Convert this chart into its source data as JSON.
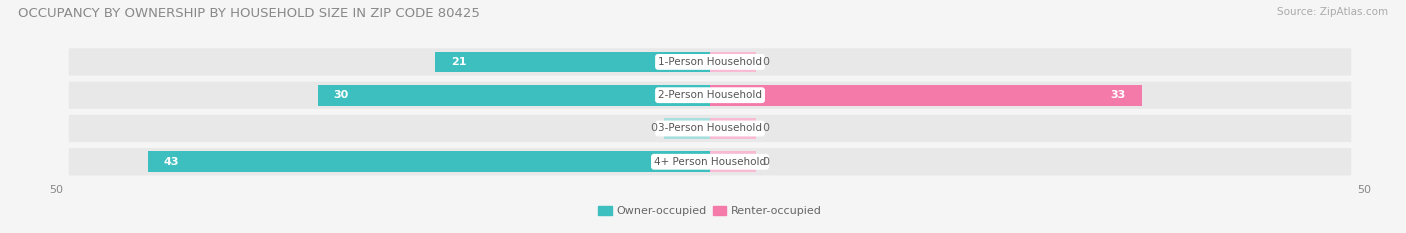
{
  "title": "OCCUPANCY BY OWNERSHIP BY HOUSEHOLD SIZE IN ZIP CODE 80425",
  "source": "Source: ZipAtlas.com",
  "categories": [
    "1-Person Household",
    "2-Person Household",
    "3-Person Household",
    "4+ Person Household"
  ],
  "owner_values": [
    21,
    30,
    0,
    43
  ],
  "renter_values": [
    0,
    33,
    0,
    0
  ],
  "owner_color": "#3dbfbf",
  "renter_color": "#f47aaa",
  "owner_label": "Owner-occupied",
  "renter_label": "Renter-occupied",
  "owner_zero_color": "#a8dede",
  "renter_zero_color": "#f9bbd4",
  "xlim": [
    -50,
    50
  ],
  "bg_row_color": "#e8e8e8",
  "bg_fig_color": "#f5f5f5",
  "title_fontsize": 9.5,
  "source_fontsize": 7.5,
  "label_fontsize": 7.5,
  "value_fontsize": 8,
  "bar_height": 0.62,
  "zero_stub": 3.5
}
